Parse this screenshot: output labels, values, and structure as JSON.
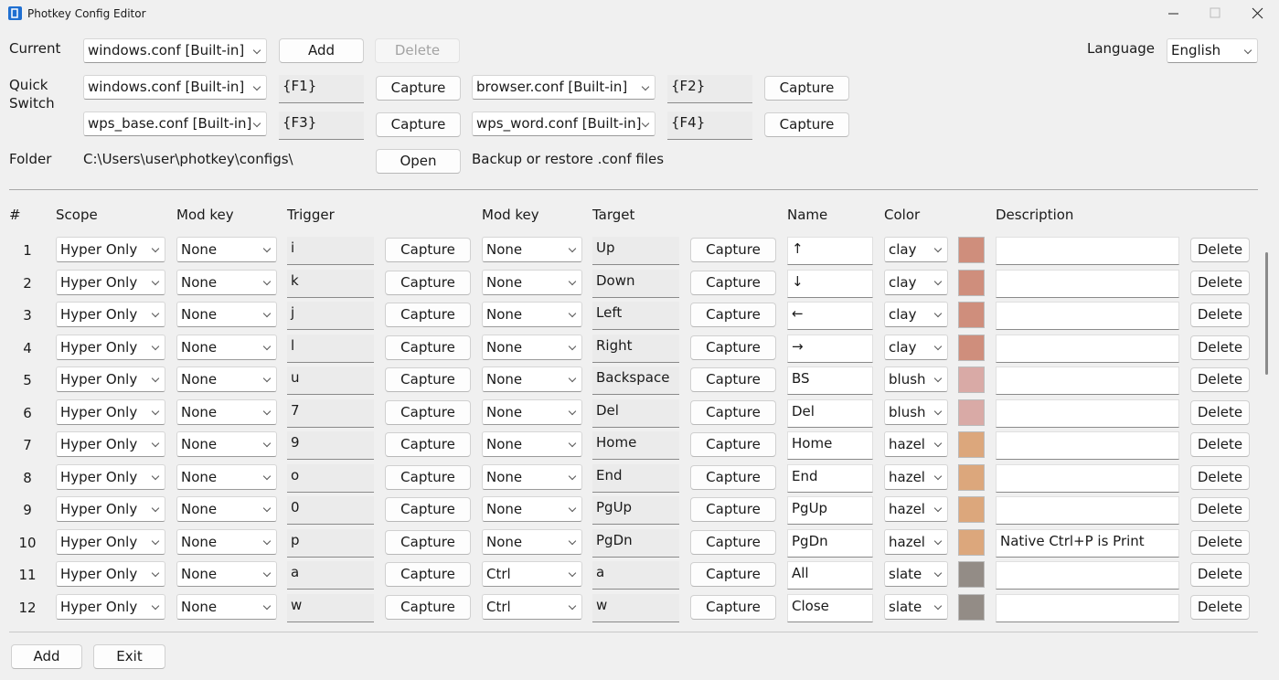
{
  "window": {
    "title": "Photkey Config Editor"
  },
  "buttons": {
    "add": "Add",
    "delete": "Delete",
    "capture": "Capture",
    "open": "Open",
    "exit": "Exit"
  },
  "config": {
    "current_label": "Current",
    "current": "windows.conf [Built-in]",
    "language_label": "Language",
    "language": "English"
  },
  "quick_switch": {
    "label": "Quick Switch",
    "slots": [
      {
        "config": "windows.conf [Built-in]",
        "key": "{F1}"
      },
      {
        "config": "browser.conf [Built-in]",
        "key": "{F2}"
      },
      {
        "config": "wps_base.conf [Built-in]",
        "key": "{F3}"
      },
      {
        "config": "wps_word.conf [Built-in]",
        "key": "{F4}"
      }
    ]
  },
  "folder": {
    "label": "Folder",
    "path": "C:\\Users\\user\\photkey\\configs\\",
    "note": "Backup or restore .conf files"
  },
  "swatches": {
    "clay": "#cf8e7c",
    "blush": "#d9aaa6",
    "hazel": "#dca77c",
    "slate": "#938c86"
  },
  "table": {
    "headers": {
      "no": "#",
      "scope": "Scope",
      "mod": "Mod key",
      "trigger": "Trigger",
      "target_mod": "Mod key",
      "target": "Target",
      "name": "Name",
      "color": "Color",
      "description": "Description"
    },
    "rows": [
      {
        "no": 1,
        "scope": "Hyper Only",
        "mod": "None",
        "trigger": "i",
        "target_mod": "None",
        "target": "Up",
        "name": "↑",
        "color": "clay",
        "description": ""
      },
      {
        "no": 2,
        "scope": "Hyper Only",
        "mod": "None",
        "trigger": "k",
        "target_mod": "None",
        "target": "Down",
        "name": "↓",
        "color": "clay",
        "description": ""
      },
      {
        "no": 3,
        "scope": "Hyper Only",
        "mod": "None",
        "trigger": "j",
        "target_mod": "None",
        "target": "Left",
        "name": "←",
        "color": "clay",
        "description": ""
      },
      {
        "no": 4,
        "scope": "Hyper Only",
        "mod": "None",
        "trigger": "l",
        "target_mod": "None",
        "target": "Right",
        "name": "→",
        "color": "clay",
        "description": ""
      },
      {
        "no": 5,
        "scope": "Hyper Only",
        "mod": "None",
        "trigger": "u",
        "target_mod": "None",
        "target": "Backspace",
        "name": "BS",
        "color": "blush",
        "description": ""
      },
      {
        "no": 6,
        "scope": "Hyper Only",
        "mod": "None",
        "trigger": "7",
        "target_mod": "None",
        "target": "Del",
        "name": "Del",
        "color": "blush",
        "description": ""
      },
      {
        "no": 7,
        "scope": "Hyper Only",
        "mod": "None",
        "trigger": "9",
        "target_mod": "None",
        "target": "Home",
        "name": "Home",
        "color": "hazel",
        "description": ""
      },
      {
        "no": 8,
        "scope": "Hyper Only",
        "mod": "None",
        "trigger": "o",
        "target_mod": "None",
        "target": "End",
        "name": "End",
        "color": "hazel",
        "description": ""
      },
      {
        "no": 9,
        "scope": "Hyper Only",
        "mod": "None",
        "trigger": "0",
        "target_mod": "None",
        "target": "PgUp",
        "name": "PgUp",
        "color": "hazel",
        "description": ""
      },
      {
        "no": 10,
        "scope": "Hyper Only",
        "mod": "None",
        "trigger": "p",
        "target_mod": "None",
        "target": "PgDn",
        "name": "PgDn",
        "color": "hazel",
        "description": "Native Ctrl+P is Print"
      },
      {
        "no": 11,
        "scope": "Hyper Only",
        "mod": "None",
        "trigger": "a",
        "target_mod": "Ctrl",
        "target": "a",
        "name": "All",
        "color": "slate",
        "description": ""
      },
      {
        "no": 12,
        "scope": "Hyper Only",
        "mod": "None",
        "trigger": "w",
        "target_mod": "Ctrl",
        "target": "w",
        "name": "Close",
        "color": "slate",
        "description": ""
      }
    ]
  }
}
